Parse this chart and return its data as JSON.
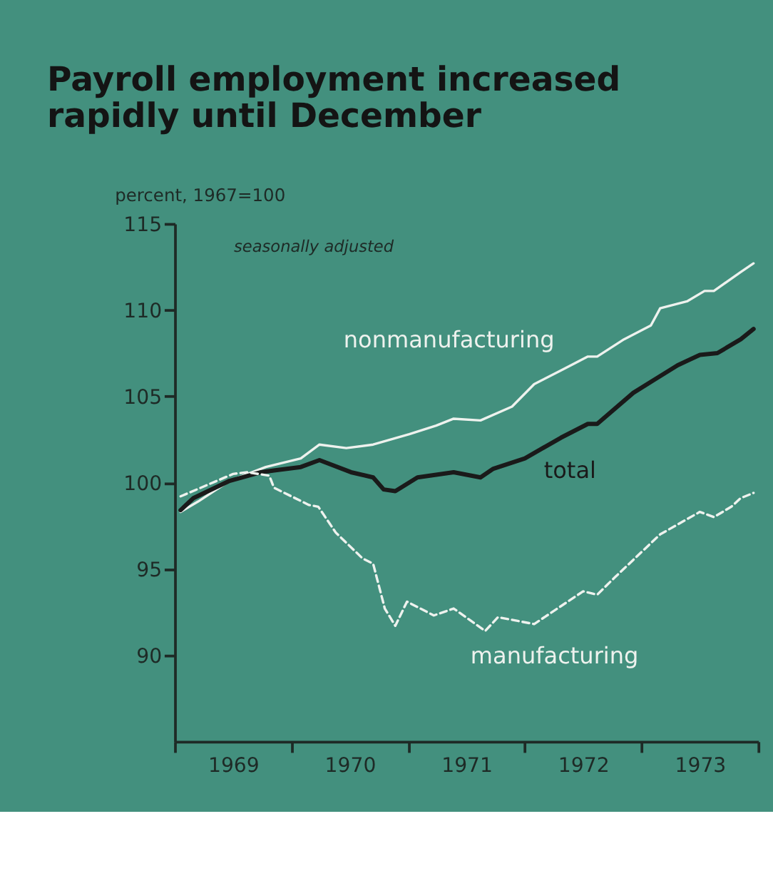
{
  "chart_data": {
    "type": "line",
    "title": "Payroll employment increased rapidly until December",
    "ylabel": "percent, 1967=100",
    "annotations": [
      "seasonally adjusted"
    ],
    "xlim": [
      1969,
      1974
    ],
    "ylim": [
      85,
      115
    ],
    "xticks": [
      {
        "value": 1969,
        "label": null
      },
      {
        "value": 1969.5,
        "label": "1969"
      },
      {
        "value": 1970,
        "label": null
      },
      {
        "value": 1970.5,
        "label": "1970"
      },
      {
        "value": 1971,
        "label": null
      },
      {
        "value": 1971.5,
        "label": "1971"
      },
      {
        "value": 1972,
        "label": null
      },
      {
        "value": 1972.5,
        "label": "1972"
      },
      {
        "value": 1973,
        "label": null
      },
      {
        "value": 1973.5,
        "label": "1973"
      },
      {
        "value": 1974,
        "label": null
      }
    ],
    "yticks": [
      90,
      95,
      100,
      105,
      110,
      115
    ],
    "grid": false,
    "legend": false,
    "series": [
      {
        "name": "nonmanufacturing",
        "color": "#eef2ee",
        "line_style": "solid",
        "x": [
          1969.05,
          1969.2,
          1969.47,
          1969.78,
          1970.08,
          1970.24,
          1970.47,
          1970.7,
          1971.01,
          1971.24,
          1971.39,
          1971.62,
          1971.89,
          1972.08,
          1972.31,
          1972.54,
          1972.62,
          1972.85,
          1973.08,
          1973.16,
          1973.39,
          1973.54,
          1973.62,
          1973.85,
          1973.96
        ],
        "values": [
          98.3,
          98.9,
          100.1,
          100.9,
          101.4,
          102.2,
          102.0,
          102.2,
          102.8,
          103.3,
          103.7,
          103.6,
          104.4,
          105.7,
          106.5,
          107.3,
          107.3,
          108.3,
          109.1,
          110.1,
          110.5,
          111.1,
          111.1,
          112.2,
          112.7
        ]
      },
      {
        "name": "total",
        "color": "#1a1a1a",
        "line_style": "solid",
        "x": [
          1969.05,
          1969.16,
          1969.47,
          1969.74,
          1969.85,
          1970.08,
          1970.24,
          1970.51,
          1970.7,
          1970.79,
          1970.89,
          1971.08,
          1971.39,
          1971.62,
          1971.73,
          1972.0,
          1972.31,
          1972.54,
          1972.62,
          1972.93,
          1973.12,
          1973.31,
          1973.5,
          1973.65,
          1973.85,
          1973.96
        ],
        "values": [
          98.4,
          99.1,
          100.1,
          100.6,
          100.7,
          100.9,
          101.3,
          100.6,
          100.3,
          99.6,
          99.5,
          100.3,
          100.6,
          100.3,
          100.8,
          101.4,
          102.6,
          103.4,
          103.4,
          105.2,
          106.0,
          106.8,
          107.4,
          107.5,
          108.3,
          108.9
        ]
      },
      {
        "name": "manufacturing",
        "color": "#eef2ee",
        "line_style": "dashed",
        "x": [
          1969.05,
          1969.5,
          1969.62,
          1969.81,
          1969.85,
          1970.15,
          1970.23,
          1970.38,
          1970.61,
          1970.7,
          1970.8,
          1970.89,
          1970.99,
          1971.22,
          1971.39,
          1971.66,
          1971.77,
          1972.08,
          1972.5,
          1972.62,
          1972.77,
          1973.16,
          1973.5,
          1973.62,
          1973.77,
          1973.85,
          1973.96
        ],
        "values": [
          99.2,
          100.5,
          100.6,
          100.4,
          99.7,
          98.7,
          98.6,
          97.1,
          95.6,
          95.3,
          92.7,
          91.7,
          93.1,
          92.3,
          92.7,
          91.4,
          92.2,
          91.8,
          93.7,
          93.5,
          94.5,
          97.0,
          98.3,
          98.0,
          98.6,
          99.1,
          99.4
        ]
      }
    ]
  }
}
